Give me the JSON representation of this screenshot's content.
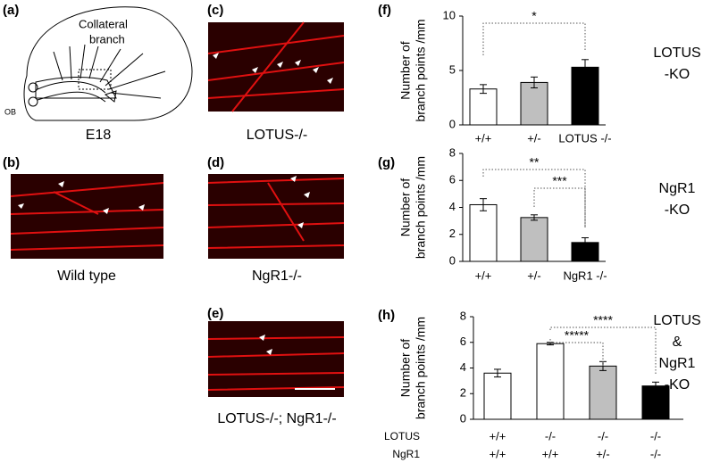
{
  "panel_labels": [
    "(a)",
    "(b)",
    "(c)",
    "(d)",
    "(e)",
    "(f)",
    "(g)",
    "(h)"
  ],
  "diagram": {
    "label": [
      "Collateral",
      "branch"
    ],
    "ob": "OB",
    "caption": "E18"
  },
  "image_captions": [
    "Wild type",
    "LOTUS-/-",
    "NgR1-/-",
    "LOTUS-/-; NgR1-/-"
  ],
  "chart_data": [
    {
      "type": "bar",
      "y_label": [
        "Number of",
        "branch points /mm"
      ],
      "side_label": [
        "LOTUS",
        "-KO"
      ],
      "categories": [
        "+/+",
        "+/-",
        "LOTUS -/-"
      ],
      "series": [
        {
          "values": [
            3.3,
            3.9,
            5.3
          ],
          "errors": [
            0.4,
            0.5,
            0.7
          ],
          "colors": [
            "#ffffff",
            "#bfbfbf",
            "#000000"
          ]
        }
      ],
      "ylim": [
        0,
        10
      ],
      "yticks": [
        0,
        5,
        10
      ],
      "significance": [
        "*"
      ]
    },
    {
      "type": "bar",
      "y_label": [
        "Number of",
        "branch points /mm"
      ],
      "side_label": [
        "NgR1",
        "-KO"
      ],
      "categories": [
        "+/+",
        "+/-",
        "NgR1 -/-"
      ],
      "series": [
        {
          "values": [
            4.2,
            3.25,
            1.4
          ],
          "errors": [
            0.45,
            0.2,
            0.35
          ],
          "colors": [
            "#ffffff",
            "#bfbfbf",
            "#000000"
          ]
        }
      ],
      "ylim": [
        0,
        8
      ],
      "yticks": [
        0,
        2,
        4,
        6,
        8
      ],
      "significance": [
        "**",
        "***"
      ]
    },
    {
      "type": "bar",
      "y_label": [
        "Number of",
        "branch points /mm"
      ],
      "side_label": [
        "LOTUS",
        "&",
        "NgR1",
        "-KO"
      ],
      "category_rows": [
        {
          "name": "LOTUS",
          "labels": [
            "+/+",
            "-/-",
            "-/-",
            "-/-"
          ]
        },
        {
          "name": "NgR1",
          "labels": [
            "+/+",
            "+/+",
            "+/-",
            "-/-"
          ]
        }
      ],
      "series": [
        {
          "values": [
            3.6,
            5.9,
            4.15,
            2.6
          ],
          "errors": [
            0.3,
            0.1,
            0.35,
            0.3
          ],
          "colors": [
            "#ffffff",
            "#ffffff",
            "#bfbfbf",
            "#000000"
          ]
        }
      ],
      "ylim": [
        0,
        8
      ],
      "yticks": [
        0,
        2,
        4,
        6,
        8
      ],
      "significance": [
        "*****",
        "****"
      ]
    }
  ]
}
